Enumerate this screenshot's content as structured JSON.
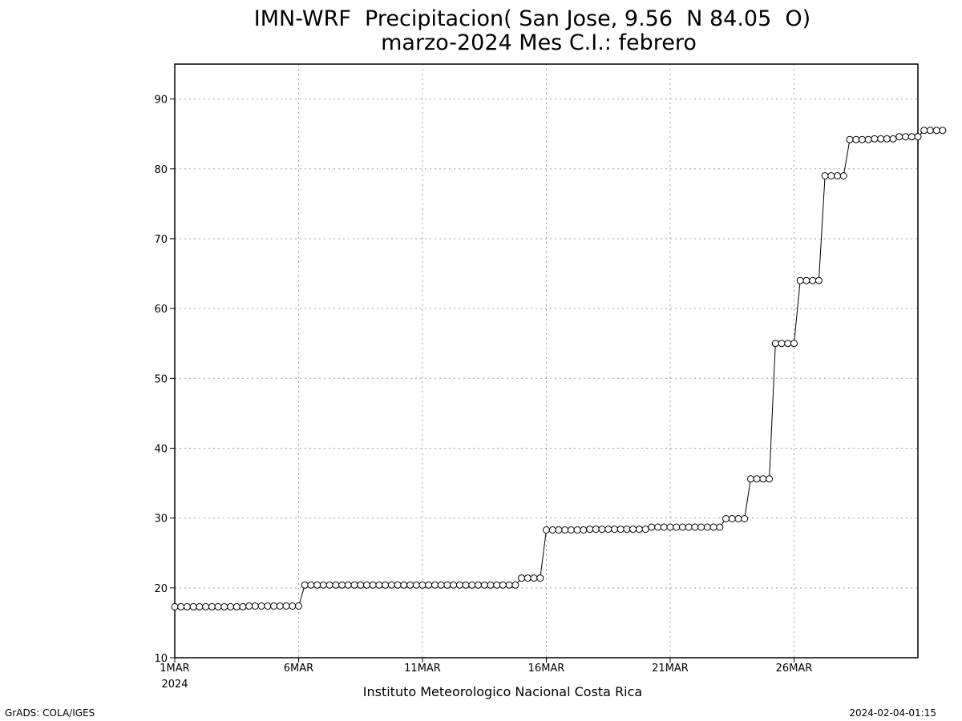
{
  "chart_data": {
    "type": "line",
    "title": "IMN-WRF  Precipitacion( San Jose, 9.56  N 84.05  O)",
    "subtitle": "marzo-2024 Mes C.I.: febrero",
    "xlabel": "Instituto Meteorologico Nacional Costa Rica",
    "ylabel": "",
    "ylim": [
      10,
      95
    ],
    "xlim": [
      "2024-03-01T00:00",
      "2024-03-31T00:00"
    ],
    "x_step_hours": 6,
    "grid": true,
    "x_ticks": [
      {
        "x": "2024-03-01T00:00",
        "label": "1MAR",
        "sublabel": "2024"
      },
      {
        "x": "2024-03-06T00:00",
        "label": "6MAR"
      },
      {
        "x": "2024-03-11T00:00",
        "label": "11MAR"
      },
      {
        "x": "2024-03-16T00:00",
        "label": "16MAR"
      },
      {
        "x": "2024-03-21T00:00",
        "label": "21MAR"
      },
      {
        "x": "2024-03-26T00:00",
        "label": "26MAR"
      }
    ],
    "y_ticks": [
      10,
      20,
      30,
      40,
      50,
      60,
      70,
      80,
      90
    ],
    "series": [
      {
        "x_start": "2024-03-01T00:00",
        "values": [
          17.3,
          17.3,
          17.3,
          17.3,
          17.3,
          17.3,
          17.3,
          17.3,
          17.3,
          17.3,
          17.3,
          17.3,
          17.4,
          17.4,
          17.4,
          17.4,
          17.4,
          17.4,
          17.4,
          17.4,
          17.4,
          20.4,
          20.4,
          20.4,
          20.4,
          20.4,
          20.4,
          20.4,
          20.4,
          20.4,
          20.4,
          20.4,
          20.4,
          20.4,
          20.4,
          20.4,
          20.4,
          20.4,
          20.4,
          20.4,
          20.4,
          20.4,
          20.4,
          20.4,
          20.4,
          20.4,
          20.4,
          20.4,
          20.4,
          20.4,
          20.4,
          20.4,
          20.4,
          20.4,
          20.4,
          20.4,
          21.4,
          21.4,
          21.4,
          21.4,
          28.3,
          28.3,
          28.3,
          28.3,
          28.3,
          28.3,
          28.3,
          28.4,
          28.4,
          28.4,
          28.4,
          28.4,
          28.4,
          28.4,
          28.4,
          28.4,
          28.4,
          28.7,
          28.7,
          28.7,
          28.7,
          28.7,
          28.7,
          28.7,
          28.7,
          28.7,
          28.7,
          28.7,
          28.7,
          29.9,
          29.9,
          29.9,
          29.9,
          35.6,
          35.6,
          35.6,
          35.6,
          55.0,
          55.0,
          55.0,
          55.0,
          64.0,
          64.0,
          64.0,
          64.0,
          79.0,
          79.0,
          79.0,
          79.0,
          84.2,
          84.2,
          84.2,
          84.2,
          84.3,
          84.3,
          84.3,
          84.3,
          84.6,
          84.6,
          84.6,
          84.6,
          85.5,
          85.5,
          85.5,
          85.5
        ]
      }
    ]
  },
  "footer": {
    "left": "GrADS: COLA/IGES",
    "right": "2024-02-04-01:15"
  }
}
